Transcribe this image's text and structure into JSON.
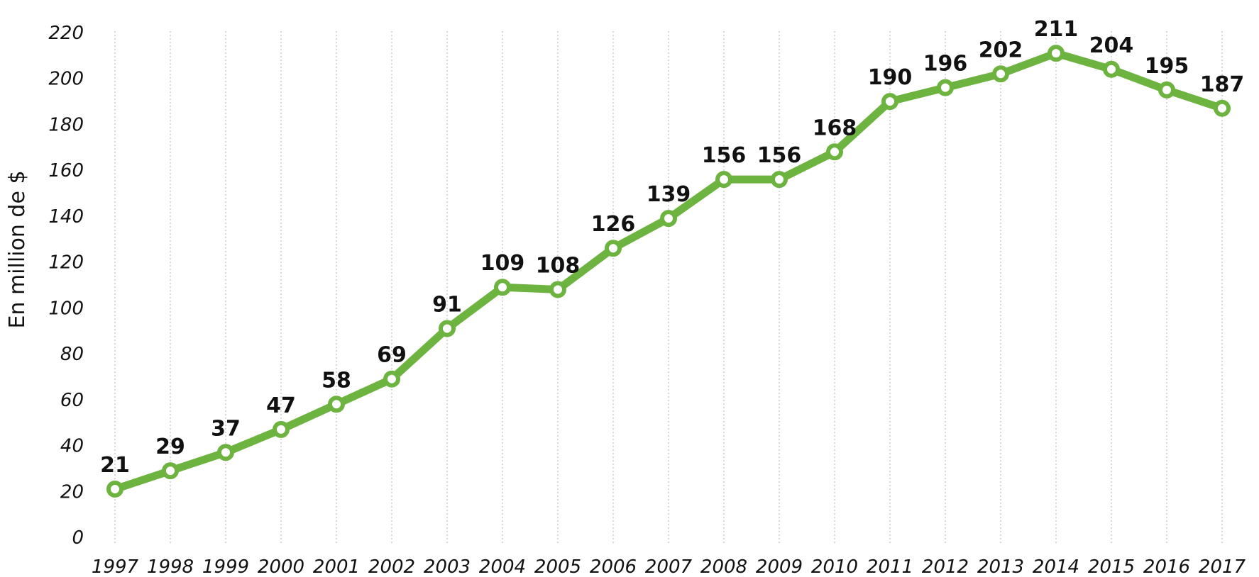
{
  "chart_data": {
    "type": "line",
    "title": "",
    "xlabel": "",
    "ylabel": "En million de $",
    "ylim": [
      0,
      220
    ],
    "yticks": [
      0,
      20,
      40,
      60,
      80,
      100,
      120,
      140,
      160,
      180,
      200,
      220
    ],
    "grid": "vertical",
    "legend": "none",
    "line_color": "#6db33f",
    "x": [
      "1997",
      "1998",
      "1999",
      "2000",
      "2001",
      "2002",
      "2003",
      "2004",
      "2005",
      "2006",
      "2007",
      "2008",
      "2009",
      "2010",
      "2011",
      "2012",
      "2013",
      "2014",
      "2015",
      "2016",
      "2017"
    ],
    "series": [
      {
        "values": [
          21,
          29,
          37,
          47,
          58,
          69,
          91,
          109,
          108,
          126,
          139,
          156,
          156,
          168,
          190,
          196,
          202,
          211,
          204,
          195,
          187
        ]
      }
    ]
  }
}
